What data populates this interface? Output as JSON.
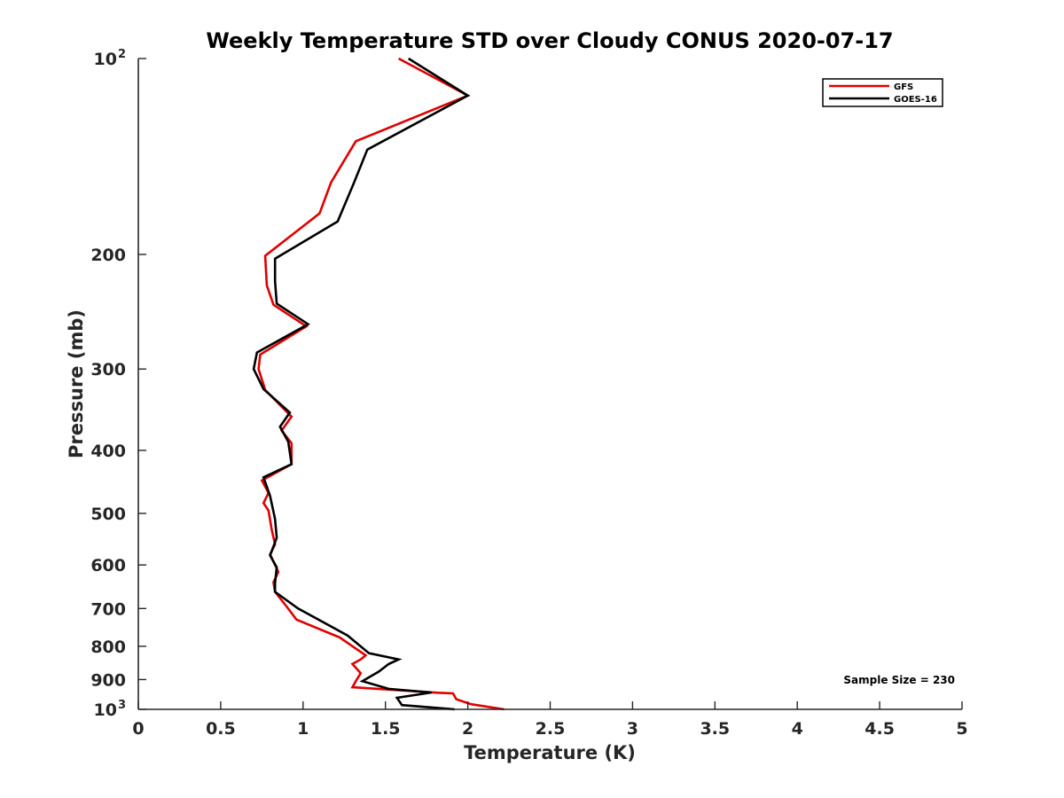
{
  "chart_data": {
    "type": "line",
    "title": "Weekly Temperature STD over Cloudy CONUS 2020-07-17",
    "xlabel": "Temperature (K)",
    "ylabel": "Pressure (mb)",
    "xlim": [
      0,
      5
    ],
    "ylim": [
      100,
      1000
    ],
    "y_scale": "log",
    "y_reversed": true,
    "x_ticks": [
      {
        "value": 0,
        "label": "0"
      },
      {
        "value": 0.5,
        "label": "0.5"
      },
      {
        "value": 1,
        "label": "1"
      },
      {
        "value": 1.5,
        "label": "1.5"
      },
      {
        "value": 2,
        "label": "2"
      },
      {
        "value": 2.5,
        "label": "2.5"
      },
      {
        "value": 3,
        "label": "3"
      },
      {
        "value": 3.5,
        "label": "3.5"
      },
      {
        "value": 4,
        "label": "4"
      },
      {
        "value": 4.5,
        "label": "4.5"
      },
      {
        "value": 5,
        "label": "5"
      }
    ],
    "y_ticks": [
      {
        "value": 100,
        "label": "10",
        "exp": "2"
      },
      {
        "value": 200,
        "label": "200"
      },
      {
        "value": 300,
        "label": "300"
      },
      {
        "value": 400,
        "label": "400"
      },
      {
        "value": 500,
        "label": "500"
      },
      {
        "value": 600,
        "label": "600"
      },
      {
        "value": 700,
        "label": "700"
      },
      {
        "value": 800,
        "label": "800"
      },
      {
        "value": 900,
        "label": "900"
      },
      {
        "value": 1000,
        "label": "10",
        "exp": "3"
      }
    ],
    "grid": false,
    "legend_position": "top-right",
    "annotation": "Sample Size = 230",
    "series": [
      {
        "name": "GFS",
        "color": "#e00000",
        "points": [
          [
            1.58,
            100
          ],
          [
            2.0,
            114
          ],
          [
            1.32,
            134
          ],
          [
            1.17,
            155
          ],
          [
            1.1,
            173
          ],
          [
            0.77,
            201
          ],
          [
            0.78,
            223
          ],
          [
            0.82,
            239
          ],
          [
            1.02,
            258
          ],
          [
            0.74,
            285
          ],
          [
            0.73,
            300
          ],
          [
            0.77,
            323
          ],
          [
            0.93,
            355
          ],
          [
            0.87,
            373
          ],
          [
            0.93,
            390
          ],
          [
            0.93,
            420
          ],
          [
            0.75,
            445
          ],
          [
            0.79,
            465
          ],
          [
            0.76,
            482
          ],
          [
            0.79,
            495
          ],
          [
            0.81,
            530
          ],
          [
            0.83,
            558
          ],
          [
            0.8,
            578
          ],
          [
            0.83,
            600
          ],
          [
            0.85,
            615
          ],
          [
            0.82,
            638
          ],
          [
            0.83,
            660
          ],
          [
            0.9,
            695
          ],
          [
            0.96,
            728
          ],
          [
            1.22,
            775
          ],
          [
            1.38,
            826
          ],
          [
            1.35,
            838
          ],
          [
            1.3,
            852
          ],
          [
            1.35,
            880
          ],
          [
            1.32,
            905
          ],
          [
            1.3,
            925
          ],
          [
            1.82,
            943
          ],
          [
            1.91,
            945
          ],
          [
            1.93,
            965
          ],
          [
            2.02,
            982
          ],
          [
            2.22,
            1000
          ]
        ]
      },
      {
        "name": "GOES-16",
        "color": "#000000",
        "points": [
          [
            1.64,
            100
          ],
          [
            2.0,
            114
          ],
          [
            1.39,
            138
          ],
          [
            1.31,
            155
          ],
          [
            1.21,
            178
          ],
          [
            0.83,
            203
          ],
          [
            0.83,
            220
          ],
          [
            0.84,
            238
          ],
          [
            1.03,
            256
          ],
          [
            0.72,
            283
          ],
          [
            0.7,
            300
          ],
          [
            0.76,
            322
          ],
          [
            0.92,
            350
          ],
          [
            0.86,
            368
          ],
          [
            0.91,
            388
          ],
          [
            0.93,
            420
          ],
          [
            0.76,
            440
          ],
          [
            0.8,
            470
          ],
          [
            0.83,
            510
          ],
          [
            0.84,
            545
          ],
          [
            0.8,
            580
          ],
          [
            0.84,
            605
          ],
          [
            0.83,
            640
          ],
          [
            0.83,
            660
          ],
          [
            0.97,
            700
          ],
          [
            1.27,
            770
          ],
          [
            1.4,
            820
          ],
          [
            1.58,
            838
          ],
          [
            1.52,
            852
          ],
          [
            1.46,
            875
          ],
          [
            1.36,
            905
          ],
          [
            1.52,
            930
          ],
          [
            1.78,
            942
          ],
          [
            1.57,
            960
          ],
          [
            1.6,
            985
          ],
          [
            1.92,
            1000
          ]
        ]
      }
    ]
  }
}
